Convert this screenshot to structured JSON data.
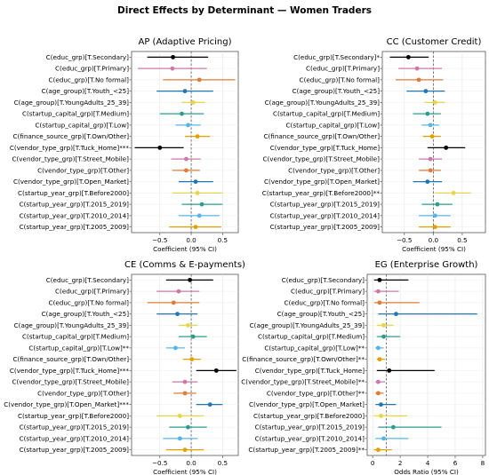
{
  "figure": {
    "title": "Direct Effects by Determinant — Women Traders"
  },
  "chart_data": [
    {
      "type": "scatter",
      "id": "AP",
      "title": "AP (Adaptive Pricing)",
      "xlabel": "Coefficient (95% CI)",
      "xlim": [
        -0.95,
        0.75
      ],
      "xticks": [
        -0.5,
        0.0,
        0.5
      ],
      "xtick_labels": [
        "−0.5",
        "0.0",
        "0.5"
      ],
      "refline": 0,
      "grid": true,
      "rows": [
        {
          "label": "C(educ_grp)[T.Secondary]",
          "est": -0.29,
          "lo": -0.7,
          "hi": 0.27,
          "color": "#000000"
        },
        {
          "label": "C(educ_grp)[T.Primary]",
          "est": -0.3,
          "lo": -0.85,
          "hi": 0.25,
          "color": "#cc79a7"
        },
        {
          "label": "C(educ_grp)[T.No formal]",
          "est": 0.13,
          "lo": -0.45,
          "hi": 0.7,
          "color": "#e07b39"
        },
        {
          "label": "C(age_group)[T.Youth_<25]",
          "est": -0.1,
          "lo": -0.55,
          "hi": 0.35,
          "color": "#1f77b4"
        },
        {
          "label": "C(age_group)[T.YoungAdults_25_39]",
          "est": 0.03,
          "lo": -0.15,
          "hi": 0.22,
          "color": "#e8d44d"
        },
        {
          "label": "C(startup_capital_grp)[T.Medium]",
          "est": -0.15,
          "lo": -0.5,
          "hi": 0.2,
          "color": "#2a9d8f"
        },
        {
          "label": "C(startup_capital_grp)[T.Low]",
          "est": -0.05,
          "lo": -0.25,
          "hi": 0.15,
          "color": "#56b4e9"
        },
        {
          "label": "C(finance_source_grp)[T.Own/Other]",
          "est": 0.1,
          "lo": -0.1,
          "hi": 0.3,
          "color": "#e69f00"
        },
        {
          "label": "C(vendor_type_grp)[T.Tuck_Home]***",
          "est": -0.5,
          "lo": -0.9,
          "hi": -0.12,
          "color": "#000000"
        },
        {
          "label": "C(vendor_type_grp)[T.Street_Mobile]",
          "est": -0.08,
          "lo": -0.32,
          "hi": 0.15,
          "color": "#cc79a7"
        },
        {
          "label": "C(vendor_type_grp)[T.Other]",
          "est": -0.08,
          "lo": -0.3,
          "hi": 0.14,
          "color": "#e07b39"
        },
        {
          "label": "C(vendor_type_grp)[T.Open_Market]",
          "est": 0.07,
          "lo": -0.2,
          "hi": 0.35,
          "color": "#1f77b4"
        },
        {
          "label": "C(startup_year_grp)[T.Before2000]",
          "est": 0.1,
          "lo": -0.3,
          "hi": 0.5,
          "color": "#e8d44d"
        },
        {
          "label": "C(startup_year_grp)[T.2015_2019]",
          "est": 0.17,
          "lo": -0.15,
          "hi": 0.5,
          "color": "#2a9d8f"
        },
        {
          "label": "C(startup_year_grp)[T.2010_2014]",
          "est": 0.13,
          "lo": -0.2,
          "hi": 0.45,
          "color": "#56b4e9"
        },
        {
          "label": "C(startup_year_grp)[T.2005_2009]",
          "est": 0.07,
          "lo": -0.35,
          "hi": 0.48,
          "color": "#e69f00"
        }
      ]
    },
    {
      "type": "scatter",
      "id": "CC",
      "title": "CC (Customer Credit)",
      "xlabel": "Coefficient (95% CI)",
      "xlim": [
        -0.88,
        0.9
      ],
      "xticks": [
        -0.5,
        0.0,
        0.5
      ],
      "xtick_labels": [
        "−0.5",
        "0.0",
        "0.5"
      ],
      "refline": 0,
      "grid": true,
      "rows": [
        {
          "label": "C(educ_grp)[T.Secondary]*",
          "est": -0.43,
          "lo": -0.75,
          "hi": -0.08,
          "color": "#000000"
        },
        {
          "label": "C(educ_grp)[T.Primary]",
          "est": -0.28,
          "lo": -0.6,
          "hi": 0.15,
          "color": "#cc79a7"
        },
        {
          "label": "C(educ_grp)[T.No formal]",
          "est": -0.25,
          "lo": -0.65,
          "hi": 0.17,
          "color": "#e07b39"
        },
        {
          "label": "C(age_group)[T.Youth_<25]",
          "est": -0.13,
          "lo": -0.46,
          "hi": 0.2,
          "color": "#1f77b4"
        },
        {
          "label": "C(age_group)[T.YoungAdults_25_39]",
          "est": 0.03,
          "lo": -0.15,
          "hi": 0.2,
          "color": "#e8d44d"
        },
        {
          "label": "C(startup_capital_grp)[T.Medium]",
          "est": -0.1,
          "lo": -0.35,
          "hi": 0.13,
          "color": "#2a9d8f"
        },
        {
          "label": "C(startup_capital_grp)[T.Low]",
          "est": -0.05,
          "lo": -0.2,
          "hi": 0.1,
          "color": "#56b4e9"
        },
        {
          "label": "C(finance_source_grp)[T.Own/Other]",
          "est": -0.02,
          "lo": -0.18,
          "hi": 0.13,
          "color": "#e69f00"
        },
        {
          "label": "C(vendor_type_grp)[T.Tuck_Home]",
          "est": 0.22,
          "lo": -0.1,
          "hi": 0.55,
          "color": "#000000"
        },
        {
          "label": "C(vendor_type_grp)[T.Street_Mobile]",
          "est": -0.05,
          "lo": -0.25,
          "hi": 0.15,
          "color": "#cc79a7"
        },
        {
          "label": "C(vendor_type_grp)[T.Other]",
          "est": -0.05,
          "lo": -0.25,
          "hi": 0.13,
          "color": "#e07b39"
        },
        {
          "label": "C(vendor_type_grp)[T.Open_Market]",
          "est": -0.1,
          "lo": -0.35,
          "hi": 0.15,
          "color": "#1f77b4"
        },
        {
          "label": "C(startup_year_grp)[T.Before2000]**",
          "est": 0.35,
          "lo": 0.03,
          "hi": 0.65,
          "color": "#e8d44d"
        },
        {
          "label": "C(startup_year_grp)[T.2015_2019]",
          "est": 0.07,
          "lo": -0.2,
          "hi": 0.33,
          "color": "#2a9d8f"
        },
        {
          "label": "C(startup_year_grp)[T.2010_2014]",
          "est": 0.03,
          "lo": -0.25,
          "hi": 0.3,
          "color": "#56b4e9"
        },
        {
          "label": "C(startup_year_grp)[T.2005_2009]",
          "est": 0.03,
          "lo": -0.25,
          "hi": 0.3,
          "color": "#e69f00"
        }
      ]
    },
    {
      "type": "scatter",
      "id": "CE",
      "title": "CE (Comms & E-payments)",
      "xlabel": "Coefficient (95% CI)",
      "xlim": [
        -0.95,
        0.75
      ],
      "xticks": [
        -0.5,
        0.0,
        0.5
      ],
      "xtick_labels": [
        "−0.5",
        "0.0",
        "0.5"
      ],
      "refline": 0,
      "grid": true,
      "rows": [
        {
          "label": "C(educ_grp)[T.Secondary]",
          "est": -0.02,
          "lo": -0.4,
          "hi": 0.35,
          "color": "#000000"
        },
        {
          "label": "C(educ_grp)[T.Primary]",
          "est": -0.2,
          "lo": -0.55,
          "hi": 0.13,
          "color": "#cc79a7"
        },
        {
          "label": "C(educ_grp)[T.No formal]",
          "est": -0.28,
          "lo": -0.7,
          "hi": 0.13,
          "color": "#e07b39"
        },
        {
          "label": "C(age_group)[T.Youth_<25]",
          "est": -0.22,
          "lo": -0.55,
          "hi": 0.1,
          "color": "#1f77b4"
        },
        {
          "label": "C(age_group)[T.YoungAdults_25_39]",
          "est": -0.05,
          "lo": -0.2,
          "hi": 0.1,
          "color": "#e8d44d"
        },
        {
          "label": "C(startup_capital_grp)[T.Medium]",
          "est": 0.03,
          "lo": -0.2,
          "hi": 0.25,
          "color": "#2a9d8f"
        },
        {
          "label": "C(startup_capital_grp)[T.Low]**",
          "est": -0.25,
          "lo": -0.4,
          "hi": -0.1,
          "color": "#56b4e9"
        },
        {
          "label": "C(finance_source_grp)[T.Own/Other]",
          "est": 0.01,
          "lo": -0.13,
          "hi": 0.15,
          "color": "#e69f00"
        },
        {
          "label": "C(vendor_type_grp)[T.Tuck_Home]***",
          "est": 0.4,
          "lo": 0.08,
          "hi": 0.72,
          "color": "#000000"
        },
        {
          "label": "C(vendor_type_grp)[T.Street_Mobile]",
          "est": -0.1,
          "lo": -0.3,
          "hi": 0.1,
          "color": "#cc79a7"
        },
        {
          "label": "C(vendor_type_grp)[T.Other]",
          "est": -0.1,
          "lo": -0.28,
          "hi": 0.08,
          "color": "#e07b39"
        },
        {
          "label": "C(vendor_type_grp)[T.Open_Market]***",
          "est": 0.3,
          "lo": 0.08,
          "hi": 0.5,
          "color": "#1f77b4"
        },
        {
          "label": "C(startup_year_grp)[T.Before2000]",
          "est": -0.18,
          "lo": -0.55,
          "hi": 0.2,
          "color": "#e8d44d"
        },
        {
          "label": "C(startup_year_grp)[T.2015_2019]",
          "est": -0.05,
          "lo": -0.35,
          "hi": 0.25,
          "color": "#2a9d8f"
        },
        {
          "label": "C(startup_year_grp)[T.2010_2014]",
          "est": -0.18,
          "lo": -0.45,
          "hi": 0.1,
          "color": "#56b4e9"
        },
        {
          "label": "C(startup_year_grp)[T.2005_2009]",
          "est": -0.1,
          "lo": -0.4,
          "hi": 0.2,
          "color": "#e69f00"
        }
      ]
    },
    {
      "type": "scatter",
      "id": "EG",
      "title": "EG (Enterprise Growth)",
      "xlabel": "Odds Ratio (95% CI)",
      "xlim": [
        -0.4,
        8.2
      ],
      "xticks": [
        0,
        2,
        4,
        6,
        8
      ],
      "xtick_labels": [
        "0",
        "2",
        "4",
        "6",
        "8"
      ],
      "refline": 1,
      "grid": true,
      "rows": [
        {
          "label": "C(educ_grp)[T.Secondary]",
          "est": 0.5,
          "lo": 0.1,
          "hi": 2.6,
          "color": "#000000"
        },
        {
          "label": "C(educ_grp)[T.Primary]",
          "est": 0.4,
          "lo": 0.1,
          "hi": 1.9,
          "color": "#cc79a7"
        },
        {
          "label": "C(educ_grp)[T.No formal]",
          "est": 0.5,
          "lo": 0.1,
          "hi": 3.4,
          "color": "#e07b39"
        },
        {
          "label": "C(age_group)[T.Youth_<25]",
          "est": 1.7,
          "lo": 0.4,
          "hi": 7.6,
          "color": "#1f77b4"
        },
        {
          "label": "C(age_group)[T.YoungAdults_25_39]",
          "est": 0.8,
          "lo": 0.3,
          "hi": 1.5,
          "color": "#e8d44d"
        },
        {
          "label": "C(startup_capital_grp)[T.Medium]",
          "est": 0.8,
          "lo": 0.3,
          "hi": 2.0,
          "color": "#2a9d8f"
        },
        {
          "label": "C(startup_capital_grp)[T.Low]**",
          "est": 0.4,
          "lo": 0.2,
          "hi": 0.8,
          "color": "#56b4e9"
        },
        {
          "label": "C(finance_source_grp)[T.Own/Other]**",
          "est": 0.5,
          "lo": 0.3,
          "hi": 0.9,
          "color": "#e69f00"
        },
        {
          "label": "C(vendor_type_grp)[T.Tuck_Home]",
          "est": 1.2,
          "lo": 0.3,
          "hi": 4.5,
          "color": "#000000"
        },
        {
          "label": "C(vendor_type_grp)[T.Street_Mobile]**",
          "est": 0.4,
          "lo": 0.2,
          "hi": 0.9,
          "color": "#cc79a7"
        },
        {
          "label": "C(vendor_type_grp)[T.Other]**",
          "est": 0.4,
          "lo": 0.2,
          "hi": 0.8,
          "color": "#e07b39"
        },
        {
          "label": "C(vendor_type_grp)[T.Open_Market]",
          "est": 0.6,
          "lo": 0.2,
          "hi": 1.7,
          "color": "#1f77b4"
        },
        {
          "label": "C(startup_year_grp)[T.Before2000]",
          "est": 0.6,
          "lo": 0.1,
          "hi": 2.5,
          "color": "#e8d44d"
        },
        {
          "label": "C(startup_year_grp)[T.2015_2019]",
          "est": 1.5,
          "lo": 0.4,
          "hi": 5.0,
          "color": "#2a9d8f"
        },
        {
          "label": "C(startup_year_grp)[T.2010_2014]",
          "est": 0.8,
          "lo": 0.2,
          "hi": 2.6,
          "color": "#56b4e9"
        },
        {
          "label": "C(startup_year_grp)[T.2005_2009]**",
          "est": 0.4,
          "lo": 0.1,
          "hi": 1.4,
          "color": "#e69f00"
        }
      ]
    }
  ]
}
